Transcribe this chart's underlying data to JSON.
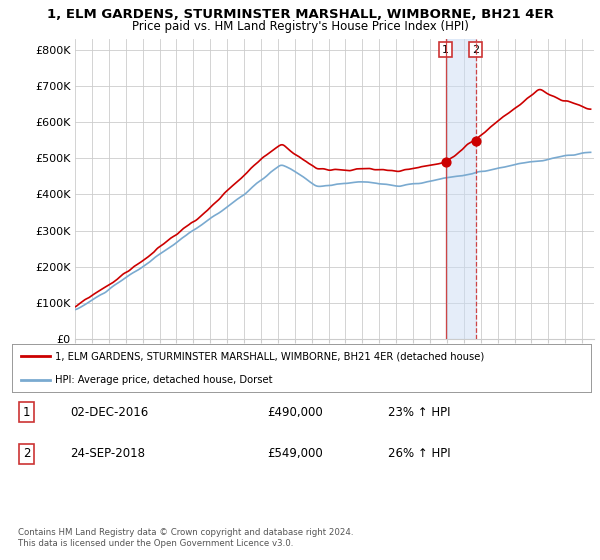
{
  "title": "1, ELM GARDENS, STURMINSTER MARSHALL, WIMBORNE, BH21 4ER",
  "subtitle": "Price paid vs. HM Land Registry's House Price Index (HPI)",
  "legend_label_red": "1, ELM GARDENS, STURMINSTER MARSHALL, WIMBORNE, BH21 4ER (detached house)",
  "legend_label_blue": "HPI: Average price, detached house, Dorset",
  "transaction1_date": "02-DEC-2016",
  "transaction1_price": "£490,000",
  "transaction1_hpi": "23% ↑ HPI",
  "transaction2_date": "24-SEP-2018",
  "transaction2_price": "£549,000",
  "transaction2_hpi": "26% ↑ HPI",
  "copyright": "Contains HM Land Registry data © Crown copyright and database right 2024.\nThis data is licensed under the Open Government Licence v3.0.",
  "ylabel_ticks": [
    "£0",
    "£100K",
    "£200K",
    "£300K",
    "£400K",
    "£500K",
    "£600K",
    "£700K",
    "£800K"
  ],
  "ylabel_values": [
    0,
    100000,
    200000,
    300000,
    400000,
    500000,
    600000,
    700000,
    800000
  ],
  "ylim": [
    0,
    830000
  ],
  "xlim_start": 1995.0,
  "xlim_end": 2025.7,
  "red_color": "#cc0000",
  "blue_color": "#7aaad0",
  "vline1_color": "#cc3333",
  "vline2_color": "#cc3333",
  "span_color": "#ccddf5",
  "background_color": "#ffffff",
  "grid_color": "#cccccc",
  "transaction1_x": 2016.917,
  "transaction1_y": 490000,
  "transaction2_x": 2018.708,
  "transaction2_y": 549000
}
